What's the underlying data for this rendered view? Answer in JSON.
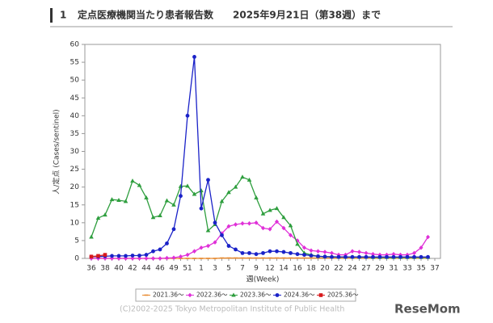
{
  "header": {
    "number": "1",
    "title": "定点医療機関当たり患者報告数　　2025年9月21日（第38週）まで"
  },
  "chart_data": {
    "type": "line",
    "y_label": "人/定点 (Cases/sentinel)",
    "x_label": "週(Week)",
    "categories": [
      "36",
      null,
      "38",
      null,
      "40",
      null,
      "42",
      null,
      "44",
      null,
      "46",
      null,
      "49",
      null,
      "51",
      null,
      "1",
      null,
      "3",
      null,
      "5",
      null,
      "7",
      null,
      "9",
      null,
      "12",
      null,
      "14",
      null,
      "16",
      null,
      "18",
      null,
      "20",
      null,
      "22",
      null,
      "24",
      null,
      "27",
      null,
      "29",
      null,
      "31",
      null,
      "33",
      null,
      "35",
      null,
      "37"
    ],
    "ylim": [
      0,
      60
    ],
    "yticks": [
      0,
      5,
      10,
      15,
      20,
      25,
      30,
      35,
      40,
      45,
      50,
      55,
      60
    ],
    "grid": false,
    "series": [
      {
        "name": "2021.36～",
        "color": "#e8892d",
        "marker": "dash",
        "values": [
          0,
          0,
          0,
          0,
          0,
          0,
          0,
          0,
          0,
          0,
          0,
          0,
          0,
          0,
          0,
          0,
          0,
          0,
          0,
          0.1,
          0.1,
          0.1,
          0.1,
          0.1,
          0.1,
          0.1,
          0.1,
          0.1,
          0.1,
          0.1,
          0.1,
          0.1,
          0.1,
          0.1,
          0.1,
          0.1,
          0.1,
          0.1,
          0.1,
          0.1,
          0.1,
          0.1,
          0.1,
          0.1,
          0.1,
          0.1,
          0.1,
          0.1,
          0.1,
          0.1,
          null
        ]
      },
      {
        "name": "2022.36～",
        "color": "#e030d8",
        "marker": "diamond",
        "values": [
          0,
          0,
          0,
          0,
          0,
          0,
          0,
          0,
          0,
          0,
          0,
          0.1,
          0.2,
          0.5,
          1,
          2,
          3,
          3.5,
          4.5,
          7,
          9,
          9.5,
          9.8,
          9.8,
          10,
          8.5,
          8.2,
          10.3,
          8.5,
          6.5,
          5,
          3,
          2.2,
          2,
          1.8,
          1.5,
          1,
          1,
          2,
          1.8,
          1.5,
          1.2,
          1,
          1,
          1.2,
          1,
          1,
          1.5,
          3,
          6,
          null
        ]
      },
      {
        "name": "2023.36～",
        "color": "#2e9e3e",
        "marker": "triangle",
        "values": [
          6,
          11.3,
          12.2,
          16.5,
          16.3,
          16,
          21.7,
          20.5,
          17,
          11.5,
          12,
          16.2,
          15,
          20.2,
          20.3,
          18,
          19,
          7.8,
          9.5,
          16,
          18.5,
          20,
          22.8,
          22,
          17,
          12.5,
          13.5,
          14,
          11.5,
          9.2,
          4,
          1.5,
          1,
          0.6,
          0.5,
          0.5,
          0.4,
          0.4,
          0.4,
          0.4,
          0.4,
          0.3,
          0.3,
          0.3,
          0.3,
          0.3,
          0.3,
          0.3,
          0.3,
          0.3,
          null
        ]
      },
      {
        "name": "2024.36～",
        "color": "#1a22c8",
        "marker": "circle",
        "values": [
          0.5,
          0.5,
          0.6,
          0.7,
          0.7,
          0.7,
          0.8,
          0.8,
          1,
          2,
          2.5,
          4.2,
          8.2,
          17.5,
          40,
          56.5,
          14,
          22,
          10,
          6.5,
          3.5,
          2.5,
          1.5,
          1.5,
          1.2,
          1.5,
          2,
          2,
          1.8,
          1.5,
          1.2,
          1,
          0.8,
          0.6,
          0.5,
          0.4,
          0.4,
          0.4,
          0.4,
          0.4,
          0.4,
          0.4,
          0.4,
          0.4,
          0.4,
          0.4,
          0.4,
          0.4,
          0.4,
          0.4,
          null
        ]
      },
      {
        "name": "2025.36～",
        "color": "#d7191c",
        "marker": "square",
        "values": [
          0.5,
          0.7,
          1,
          null,
          null,
          null,
          null,
          null,
          null,
          null,
          null,
          null,
          null,
          null,
          null,
          null,
          null,
          null,
          null,
          null,
          null,
          null,
          null,
          null,
          null,
          null,
          null,
          null,
          null,
          null,
          null,
          null,
          null,
          null,
          null,
          null,
          null,
          null,
          null,
          null,
          null,
          null,
          null,
          null,
          null,
          null,
          null,
          null,
          null,
          null,
          null
        ]
      }
    ]
  },
  "footer": {
    "copyright": "(C)2002-2025 Tokyo Metropolitan Institute of Public Health",
    "logo": "ReseMom"
  }
}
